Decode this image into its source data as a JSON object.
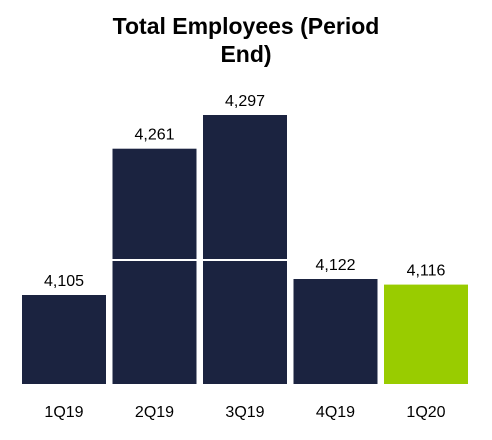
{
  "chart_data": {
    "type": "bar",
    "title": "Total Employees (Period End)",
    "categories": [
      "1Q19",
      "2Q19",
      "3Q19",
      "4Q19",
      "1Q20"
    ],
    "values": [
      4105,
      4261,
      4297,
      4122,
      4116
    ],
    "value_labels": [
      "4,105",
      "4,261",
      "4,297",
      "4,122",
      "4,116"
    ],
    "change_label": "—%",
    "xlabel": "",
    "ylabel": "",
    "grid": false,
    "legend": "none",
    "colors": {
      "bar": "#1b2340",
      "highlight_bar": "#99cc00",
      "connector": "#ffffff",
      "text": "#000000",
      "change_text": "#ffffff"
    }
  }
}
